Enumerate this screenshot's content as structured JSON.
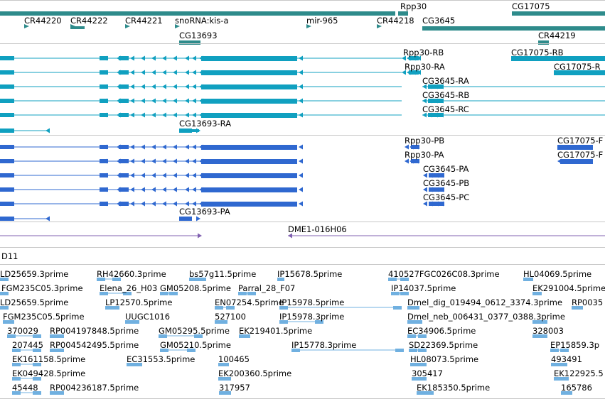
{
  "colors": {
    "gene": "#2e8b8b",
    "mrna": "#10a0c0",
    "cds": "#2f68d0",
    "pcr": "#8060b0",
    "est": "#70b0e0",
    "separator": "#c8c8c8"
  },
  "tracks": {
    "genes": {
      "labels": [
        {
          "text": "Rpp30"
        },
        {
          "text": "CG17075"
        },
        {
          "text": "CR44220"
        },
        {
          "text": "CR44222"
        },
        {
          "text": "CR44221"
        },
        {
          "text": "snoRNA:kis-a"
        },
        {
          "text": "mir-965"
        },
        {
          "text": "CR44218"
        },
        {
          "text": "CG3645"
        },
        {
          "text": "CG13693"
        },
        {
          "text": "CR44219"
        }
      ]
    },
    "transcripts": {
      "labels": [
        {
          "text": "Rpp30-RB"
        },
        {
          "text": "CG17075-RB"
        },
        {
          "text": "Rpp30-RA"
        },
        {
          "text": "CG17075-R"
        },
        {
          "text": "CG3645-RA"
        },
        {
          "text": "CG3645-RB"
        },
        {
          "text": "CG3645-RC"
        },
        {
          "text": "CG13693-RA"
        }
      ]
    },
    "proteins": {
      "labels": [
        {
          "text": "Rpp30-PB"
        },
        {
          "text": "CG17075-F"
        },
        {
          "text": "Rpp30-PA"
        },
        {
          "text": "CG17075-F"
        },
        {
          "text": "CG3645-PA"
        },
        {
          "text": "CG3645-PB"
        },
        {
          "text": "CG3645-PC"
        },
        {
          "text": "CG13693-PA"
        }
      ]
    },
    "pcr": {
      "labels": [
        {
          "text": "DME1-016H06"
        }
      ]
    },
    "clone": {
      "labels": [
        {
          "text": "D11"
        }
      ]
    },
    "ests": {
      "labels": [
        {
          "text": "LD25659.3prime"
        },
        {
          "text": "RH42660.3prime"
        },
        {
          "text": "bs57g11.5prime"
        },
        {
          "text": "IP15678.5prime"
        },
        {
          "text": "410527FGC026C08.3prime"
        },
        {
          "text": "HL04069.5prime"
        },
        {
          "text": "FGM235C05.3prime"
        },
        {
          "text": "Elena_26_H03"
        },
        {
          "text": "GM05208.5prime"
        },
        {
          "text": "Parral_28_F07"
        },
        {
          "text": "IP14037.5prime"
        },
        {
          "text": "EK291004.5prime"
        },
        {
          "text": "LD25659.5prime"
        },
        {
          "text": "LP12570.5prime"
        },
        {
          "text": "EN07254.5prime"
        },
        {
          "text": "IP15978.5prime"
        },
        {
          "text": "Dmel_dig_019494_0612_3374.3prime"
        },
        {
          "text": "RP0035"
        },
        {
          "text": "FGM235C05.5prime"
        },
        {
          "text": "UUGC1016"
        },
        {
          "text": "527100"
        },
        {
          "text": "IP15978.3prime"
        },
        {
          "text": "Dmel_neb_006431_0377_0388.3prime"
        },
        {
          "text": "370029"
        },
        {
          "text": "RP004197848.5prime"
        },
        {
          "text": "GM05295.5prime"
        },
        {
          "text": "EK219401.5prime"
        },
        {
          "text": "EC34906.5prime"
        },
        {
          "text": "328003"
        },
        {
          "text": "207445"
        },
        {
          "text": "RP004542495.5prime"
        },
        {
          "text": "GM05210.5prime"
        },
        {
          "text": "IP15778.3prime"
        },
        {
          "text": "SD22369.5prime"
        },
        {
          "text": "EP15859.3p"
        },
        {
          "text": "EK161158.5prime"
        },
        {
          "text": "EC31553.5prime"
        },
        {
          "text": "100465"
        },
        {
          "text": "HL08073.5prime"
        },
        {
          "text": "493491"
        },
        {
          "text": "EK049428.5prime"
        },
        {
          "text": "EK200360.5prime"
        },
        {
          "text": "305417"
        },
        {
          "text": "EK122925.5"
        },
        {
          "text": "45448"
        },
        {
          "text": "RP004236187.5prime"
        },
        {
          "text": "317957"
        },
        {
          "text": "EK185350.5prime"
        },
        {
          "text": "165786"
        }
      ]
    }
  }
}
